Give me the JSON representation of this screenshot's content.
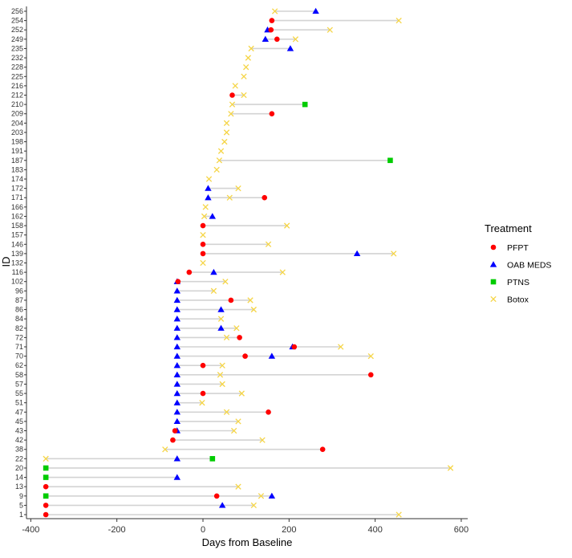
{
  "chart_data": {
    "type": "scatter",
    "xlabel": "Days from Baseline",
    "ylabel": "ID",
    "xlim": [
      -410,
      615
    ],
    "x_ticks": [
      -400,
      -200,
      0,
      200,
      400,
      600
    ],
    "grid": false,
    "legend": {
      "title": "Treatment",
      "placement": "right",
      "items": [
        {
          "name": "PFPT",
          "color": "#ff0000",
          "shape": "circle"
        },
        {
          "name": "OAB MEDS",
          "color": "#0000ff",
          "shape": "triangle"
        },
        {
          "name": "PTNS",
          "color": "#00cc00",
          "shape": "square"
        },
        {
          "name": "Botox",
          "color": "#f5d547",
          "shape": "cross"
        }
      ]
    },
    "line_color": "#d3d3d3",
    "patients": [
      {
        "id": "256",
        "start": 167,
        "end": 262,
        "points": [
          {
            "t": "Botox",
            "x": 167
          },
          {
            "t": "OAB MEDS",
            "x": 262
          }
        ]
      },
      {
        "id": "254",
        "start": 160,
        "end": 455,
        "points": [
          {
            "t": "PFPT",
            "x": 160
          },
          {
            "t": "Botox",
            "x": 455
          }
        ]
      },
      {
        "id": "252",
        "start": 150,
        "end": 295,
        "points": [
          {
            "t": "OAB MEDS",
            "x": 150
          },
          {
            "t": "PFPT",
            "x": 158
          },
          {
            "t": "Botox",
            "x": 295
          }
        ]
      },
      {
        "id": "249",
        "start": 145,
        "end": 215,
        "points": [
          {
            "t": "OAB MEDS",
            "x": 145
          },
          {
            "t": "PFPT",
            "x": 172
          },
          {
            "t": "Botox",
            "x": 215
          }
        ]
      },
      {
        "id": "235",
        "start": 112,
        "end": 203,
        "points": [
          {
            "t": "Botox",
            "x": 112
          },
          {
            "t": "OAB MEDS",
            "x": 203
          }
        ]
      },
      {
        "id": "232",
        "start": 105,
        "end": 105,
        "points": [
          {
            "t": "Botox",
            "x": 105
          }
        ]
      },
      {
        "id": "228",
        "start": 100,
        "end": 100,
        "points": [
          {
            "t": "Botox",
            "x": 100
          }
        ]
      },
      {
        "id": "225",
        "start": 95,
        "end": 95,
        "points": [
          {
            "t": "Botox",
            "x": 95
          }
        ]
      },
      {
        "id": "216",
        "start": 75,
        "end": 75,
        "points": [
          {
            "t": "Botox",
            "x": 75
          }
        ]
      },
      {
        "id": "212",
        "start": 68,
        "end": 95,
        "points": [
          {
            "t": "PFPT",
            "x": 68
          },
          {
            "t": "Botox",
            "x": 95
          }
        ]
      },
      {
        "id": "210",
        "start": 68,
        "end": 237,
        "points": [
          {
            "t": "Botox",
            "x": 68
          },
          {
            "t": "PTNS",
            "x": 237
          }
        ]
      },
      {
        "id": "209",
        "start": 65,
        "end": 160,
        "points": [
          {
            "t": "Botox",
            "x": 65
          },
          {
            "t": "PFPT",
            "x": 160
          }
        ]
      },
      {
        "id": "204",
        "start": 55,
        "end": 55,
        "points": [
          {
            "t": "Botox",
            "x": 55
          }
        ]
      },
      {
        "id": "203",
        "start": 55,
        "end": 55,
        "points": [
          {
            "t": "Botox",
            "x": 55
          }
        ]
      },
      {
        "id": "198",
        "start": 50,
        "end": 50,
        "points": [
          {
            "t": "Botox",
            "x": 50
          }
        ]
      },
      {
        "id": "191",
        "start": 42,
        "end": 42,
        "points": [
          {
            "t": "Botox",
            "x": 42
          }
        ]
      },
      {
        "id": "187",
        "start": 38,
        "end": 435,
        "points": [
          {
            "t": "Botox",
            "x": 38
          },
          {
            "t": "PTNS",
            "x": 435
          }
        ]
      },
      {
        "id": "183",
        "start": 32,
        "end": 32,
        "points": [
          {
            "t": "Botox",
            "x": 32
          }
        ]
      },
      {
        "id": "174",
        "start": 14,
        "end": 14,
        "points": [
          {
            "t": "Botox",
            "x": 14
          }
        ]
      },
      {
        "id": "172",
        "start": 12,
        "end": 82,
        "points": [
          {
            "t": "OAB MEDS",
            "x": 12
          },
          {
            "t": "Botox",
            "x": 82
          }
        ]
      },
      {
        "id": "171",
        "start": 12,
        "end": 143,
        "points": [
          {
            "t": "OAB MEDS",
            "x": 12
          },
          {
            "t": "Botox",
            "x": 62
          },
          {
            "t": "PFPT",
            "x": 143
          }
        ]
      },
      {
        "id": "166",
        "start": 6,
        "end": 6,
        "points": [
          {
            "t": "Botox",
            "x": 6
          }
        ]
      },
      {
        "id": "162",
        "start": 3,
        "end": 22,
        "points": [
          {
            "t": "Botox",
            "x": 3
          },
          {
            "t": "OAB MEDS",
            "x": 22
          }
        ]
      },
      {
        "id": "158",
        "start": 0,
        "end": 195,
        "points": [
          {
            "t": "PFPT",
            "x": 0
          },
          {
            "t": "Botox",
            "x": 195
          }
        ]
      },
      {
        "id": "157",
        "start": 0,
        "end": 0,
        "points": [
          {
            "t": "Botox",
            "x": 0
          }
        ]
      },
      {
        "id": "146",
        "start": 0,
        "end": 152,
        "points": [
          {
            "t": "PFPT",
            "x": 0
          },
          {
            "t": "Botox",
            "x": 152
          }
        ]
      },
      {
        "id": "139",
        "start": 0,
        "end": 443,
        "points": [
          {
            "t": "PFPT",
            "x": 0
          },
          {
            "t": "OAB MEDS",
            "x": 358
          },
          {
            "t": "Botox",
            "x": 443
          }
        ]
      },
      {
        "id": "132",
        "start": 0,
        "end": 0,
        "points": [
          {
            "t": "Botox",
            "x": 0
          }
        ]
      },
      {
        "id": "116",
        "start": -32,
        "end": 185,
        "points": [
          {
            "t": "PFPT",
            "x": -32
          },
          {
            "t": "OAB MEDS",
            "x": 25
          },
          {
            "t": "Botox",
            "x": 185
          }
        ]
      },
      {
        "id": "102",
        "start": -60,
        "end": 52,
        "points": [
          {
            "t": "OAB MEDS",
            "x": -60
          },
          {
            "t": "PFPT",
            "x": -58
          },
          {
            "t": "Botox",
            "x": 52
          }
        ]
      },
      {
        "id": "96",
        "start": -60,
        "end": 25,
        "points": [
          {
            "t": "OAB MEDS",
            "x": -60
          },
          {
            "t": "Botox",
            "x": 25
          }
        ]
      },
      {
        "id": "87",
        "start": -60,
        "end": 110,
        "points": [
          {
            "t": "OAB MEDS",
            "x": -60
          },
          {
            "t": "PFPT",
            "x": 65
          },
          {
            "t": "Botox",
            "x": 110
          }
        ]
      },
      {
        "id": "86",
        "start": -60,
        "end": 118,
        "points": [
          {
            "t": "OAB MEDS",
            "x": -60
          },
          {
            "t": "OAB MEDS",
            "x": 42
          },
          {
            "t": "Botox",
            "x": 118
          }
        ]
      },
      {
        "id": "84",
        "start": -60,
        "end": 42,
        "points": [
          {
            "t": "OAB MEDS",
            "x": -60
          },
          {
            "t": "Botox",
            "x": 42
          }
        ]
      },
      {
        "id": "82",
        "start": -60,
        "end": 78,
        "points": [
          {
            "t": "OAB MEDS",
            "x": -60
          },
          {
            "t": "OAB MEDS",
            "x": 42
          },
          {
            "t": "Botox",
            "x": 78
          }
        ]
      },
      {
        "id": "72",
        "start": -60,
        "end": 85,
        "points": [
          {
            "t": "OAB MEDS",
            "x": -60
          },
          {
            "t": "Botox",
            "x": 55
          },
          {
            "t": "PFPT",
            "x": 85
          }
        ]
      },
      {
        "id": "71",
        "start": -60,
        "end": 320,
        "points": [
          {
            "t": "OAB MEDS",
            "x": -60
          },
          {
            "t": "OAB MEDS",
            "x": 208
          },
          {
            "t": "PFPT",
            "x": 212
          },
          {
            "t": "Botox",
            "x": 320
          }
        ]
      },
      {
        "id": "70",
        "start": -60,
        "end": 390,
        "points": [
          {
            "t": "OAB MEDS",
            "x": -60
          },
          {
            "t": "PFPT",
            "x": 98
          },
          {
            "t": "OAB MEDS",
            "x": 160
          },
          {
            "t": "Botox",
            "x": 390
          }
        ]
      },
      {
        "id": "62",
        "start": -60,
        "end": 45,
        "points": [
          {
            "t": "OAB MEDS",
            "x": -60
          },
          {
            "t": "PFPT",
            "x": 0
          },
          {
            "t": "Botox",
            "x": 45
          }
        ]
      },
      {
        "id": "58",
        "start": -60,
        "end": 390,
        "points": [
          {
            "t": "OAB MEDS",
            "x": -60
          },
          {
            "t": "Botox",
            "x": 40
          },
          {
            "t": "PFPT",
            "x": 390
          }
        ]
      },
      {
        "id": "57",
        "start": -60,
        "end": 45,
        "points": [
          {
            "t": "OAB MEDS",
            "x": -60
          },
          {
            "t": "Botox",
            "x": 45
          }
        ]
      },
      {
        "id": "55",
        "start": -60,
        "end": 90,
        "points": [
          {
            "t": "OAB MEDS",
            "x": -60
          },
          {
            "t": "PFPT",
            "x": 0
          },
          {
            "t": "Botox",
            "x": 90
          }
        ]
      },
      {
        "id": "51",
        "start": -60,
        "end": -2,
        "points": [
          {
            "t": "OAB MEDS",
            "x": -60
          },
          {
            "t": "Botox",
            "x": -2
          }
        ]
      },
      {
        "id": "47",
        "start": -60,
        "end": 152,
        "points": [
          {
            "t": "OAB MEDS",
            "x": -60
          },
          {
            "t": "Botox",
            "x": 55
          },
          {
            "t": "PFPT",
            "x": 152
          }
        ]
      },
      {
        "id": "45",
        "start": -60,
        "end": 82,
        "points": [
          {
            "t": "OAB MEDS",
            "x": -60
          },
          {
            "t": "Botox",
            "x": 82
          }
        ]
      },
      {
        "id": "43",
        "start": -65,
        "end": 72,
        "points": [
          {
            "t": "PFPT",
            "x": -65
          },
          {
            "t": "OAB MEDS",
            "x": -60
          },
          {
            "t": "Botox",
            "x": 72
          }
        ]
      },
      {
        "id": "42",
        "start": -70,
        "end": 138,
        "points": [
          {
            "t": "PFPT",
            "x": -70
          },
          {
            "t": "Botox",
            "x": 138
          }
        ]
      },
      {
        "id": "38",
        "start": -88,
        "end": 278,
        "points": [
          {
            "t": "Botox",
            "x": -88
          },
          {
            "t": "PFPT",
            "x": 278
          }
        ]
      },
      {
        "id": "22",
        "start": -365,
        "end": 22,
        "points": [
          {
            "t": "Botox",
            "x": -365
          },
          {
            "t": "OAB MEDS",
            "x": -60
          },
          {
            "t": "PTNS",
            "x": 22
          }
        ]
      },
      {
        "id": "20",
        "start": -365,
        "end": 575,
        "points": [
          {
            "t": "PTNS",
            "x": -365
          },
          {
            "t": "Botox",
            "x": 575
          }
        ]
      },
      {
        "id": "14",
        "start": -365,
        "end": -60,
        "points": [
          {
            "t": "PTNS",
            "x": -365
          },
          {
            "t": "OAB MEDS",
            "x": -60
          }
        ]
      },
      {
        "id": "13",
        "start": -365,
        "end": 82,
        "points": [
          {
            "t": "PFPT",
            "x": -365
          },
          {
            "t": "Botox",
            "x": 82
          }
        ]
      },
      {
        "id": "9",
        "start": -365,
        "end": 160,
        "points": [
          {
            "t": "PTNS",
            "x": -365
          },
          {
            "t": "PFPT",
            "x": 32
          },
          {
            "t": "Botox",
            "x": 135
          },
          {
            "t": "OAB MEDS",
            "x": 160
          }
        ]
      },
      {
        "id": "5",
        "start": -365,
        "end": 118,
        "points": [
          {
            "t": "PFPT",
            "x": -365
          },
          {
            "t": "OAB MEDS",
            "x": 45
          },
          {
            "t": "Botox",
            "x": 118
          }
        ]
      },
      {
        "id": "1",
        "start": -365,
        "end": 455,
        "points": [
          {
            "t": "PFPT",
            "x": -365
          },
          {
            "t": "Botox",
            "x": 455
          }
        ]
      }
    ]
  }
}
